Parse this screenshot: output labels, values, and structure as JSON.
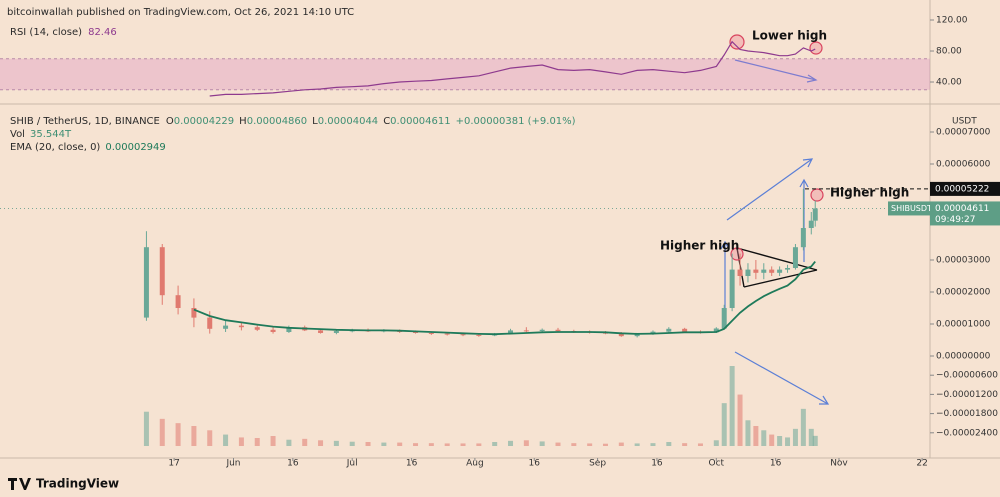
{
  "chart_data": {
    "type": "candlestick",
    "attribution": "bitcoinwallah published on TradingView.com, Oct 26, 2021 14:10 UTC",
    "symbol": "SHIB / TetherUS, 1D, BINANCE",
    "ohlc": [
      {
        "label": "O",
        "value": "0.00004229"
      },
      {
        "label": "H",
        "value": "0.00004860"
      },
      {
        "label": "L",
        "value": "0.00004044"
      },
      {
        "label": "C",
        "value": "0.00004611"
      }
    ],
    "change": "+0.00000381 (+9.01%)",
    "volume_label": "Vol",
    "volume_value": "35.544T",
    "ema_label": "EMA (20, close, 0)",
    "ema_value": "0.00002949",
    "rsi_label": "RSI (14, close)",
    "rsi_value": "82.46",
    "currency": "USDT",
    "ticker": "SHIBUSDT",
    "countdown": "09:49:27",
    "brand": "TradingView",
    "annotations": [
      "Lower high",
      "Higher high",
      "Higher high"
    ],
    "up_color": "#6aa897",
    "down_color": "#e07a6f",
    "ema_color": "#1e7a5a",
    "rsi_color": "#8e3a8e",
    "grid": false,
    "xlim": [
      -28,
      207
    ],
    "xticks": [
      {
        "value": 16,
        "label": "17"
      },
      {
        "value": 31,
        "label": "Jun"
      },
      {
        "value": 46,
        "label": "16"
      },
      {
        "value": 61,
        "label": "Jul"
      },
      {
        "value": 76,
        "label": "16"
      },
      {
        "value": 92,
        "label": "Aug"
      },
      {
        "value": 107,
        "label": "16"
      },
      {
        "value": 123,
        "label": "Sep"
      },
      {
        "value": 138,
        "label": "16"
      },
      {
        "value": 153,
        "label": "Oct"
      },
      {
        "value": 168,
        "label": "16"
      },
      {
        "value": 184,
        "label": "Nov"
      },
      {
        "value": 205,
        "label": "22"
      }
    ],
    "ylim": [
      -3.1875e-05,
      7.75e-05
    ],
    "yticks": [
      {
        "value": 7e-05,
        "label": "0.00007000"
      },
      {
        "value": 6e-05,
        "label": "0.00006000"
      },
      {
        "value": 3e-05,
        "label": "0.00003000"
      },
      {
        "value": 2e-05,
        "label": "0.00002000"
      },
      {
        "value": 1e-05,
        "label": "0.00001000"
      },
      {
        "value": 0,
        "label": "0.00000000"
      },
      {
        "value": -6e-06,
        "label": "−0.00000600"
      },
      {
        "value": -1.2e-05,
        "label": "−0.00001200"
      },
      {
        "value": -1.8e-05,
        "label": "−0.00001800"
      },
      {
        "value": -2.4e-05,
        "label": "−0.00002400"
      }
    ],
    "level": {
      "value": 5.222e-05,
      "label": "0.00005222"
    },
    "last_price": {
      "value": 4.611e-05,
      "label": "0.00004611"
    },
    "rsi_lim": [
      16.8,
      135.5
    ],
    "rsi_band": [
      30,
      70
    ],
    "rsi_ticks": [
      {
        "value": 120,
        "label": "120.00"
      },
      {
        "value": 80,
        "label": "80.00"
      },
      {
        "value": 40,
        "label": "40.00"
      }
    ],
    "volume_lim": [
      0,
      350
    ],
    "candles": {
      "x": [
        9,
        13,
        17,
        21,
        25,
        29,
        33,
        37,
        41,
        45,
        49,
        53,
        57,
        61,
        65,
        69,
        73,
        77,
        81,
        85,
        89,
        93,
        97,
        101,
        105,
        109,
        113,
        117,
        121,
        125,
        129,
        133,
        137,
        141,
        145,
        149,
        153,
        155,
        157,
        159,
        161,
        163,
        165,
        167,
        169,
        171,
        173,
        175,
        177,
        178
      ],
      "open": [
        1.2e-05,
        3.4e-05,
        1.9e-05,
        1.5e-05,
        1.2e-05,
        8.5e-06,
        9.5e-06,
        9e-06,
        8.2e-06,
        7.5e-06,
        9e-06,
        8e-06,
        7.2e-06,
        7.8e-06,
        8e-06,
        7.8e-06,
        8e-06,
        7.5e-06,
        7.2e-06,
        7e-06,
        6.8e-06,
        6.6e-06,
        6.4e-06,
        7e-06,
        8e-06,
        7.8e-06,
        8.2e-06,
        7.8e-06,
        7.6e-06,
        7.3e-06,
        7e-06,
        6.2e-06,
        7e-06,
        7.6e-06,
        8.5e-06,
        7.5e-06,
        7.4e-06,
        8.6e-06,
        1.5e-05,
        2.7e-05,
        2.5e-05,
        2.7e-05,
        2.6e-05,
        2.7e-05,
        2.6e-05,
        2.7e-05,
        2.75e-05,
        3.4e-05,
        4e-05,
        4.229e-05
      ],
      "high": [
        3.9e-05,
        3.5e-05,
        2.2e-05,
        1.8e-05,
        1.4e-05,
        1.1e-05,
        1.05e-05,
        1e-05,
        9e-06,
        9.5e-06,
        9.5e-06,
        8.5e-06,
        8.2e-06,
        8.5e-06,
        8.6e-06,
        8.4e-06,
        8.3e-06,
        8e-06,
        7.6e-06,
        7.4e-06,
        7.2e-06,
        7e-06,
        7.2e-06,
        8.5e-06,
        9e-06,
        8.6e-06,
        8.8e-06,
        8.2e-06,
        8e-06,
        7.8e-06,
        7.5e-06,
        7.2e-06,
        8e-06,
        9e-06,
        8.8e-06,
        8e-06,
        9e-06,
        1.6e-05,
        3.2e-05,
        3.2e-05,
        2.9e-05,
        3e-05,
        2.9e-05,
        2.8e-05,
        2.8e-05,
        2.85e-05,
        3.5e-05,
        5.222e-05,
        4.5e-05,
        4.86e-05
      ],
      "low": [
        1.1e-05,
        1.6e-05,
        1.3e-05,
        9e-06,
        7e-06,
        7.5e-06,
        8e-06,
        7.8e-06,
        7e-06,
        7.2e-06,
        7.8e-06,
        7e-06,
        6.8e-06,
        7.4e-06,
        7.5e-06,
        7.4e-06,
        7.2e-06,
        7e-06,
        6.6e-06,
        6.4e-06,
        6.2e-06,
        6e-06,
        6.2e-06,
        6.8e-06,
        7.4e-06,
        7.2e-06,
        7.6e-06,
        7.2e-06,
        7e-06,
        6.8e-06,
        6e-06,
        5.8e-06,
        6.6e-06,
        7.2e-06,
        7.2e-06,
        7e-06,
        7.2e-06,
        8.4e-06,
        1.4e-05,
        2.2e-05,
        2.3e-05,
        2.4e-05,
        2.4e-05,
        2.5e-05,
        2.5e-05,
        2.6e-05,
        2.7e-05,
        3.3e-05,
        3.8e-05,
        4.044e-05
      ],
      "close": [
        3.4e-05,
        1.9e-05,
        1.5e-05,
        1.2e-05,
        8.5e-06,
        9.5e-06,
        9e-06,
        8.2e-06,
        7.5e-06,
        9e-06,
        8e-06,
        7.2e-06,
        7.8e-06,
        8e-06,
        7.8e-06,
        8e-06,
        7.5e-06,
        7.2e-06,
        7e-06,
        6.8e-06,
        6.6e-06,
        6.4e-06,
        7e-06,
        8e-06,
        7.8e-06,
        8.2e-06,
        7.8e-06,
        7.6e-06,
        7.3e-06,
        7e-06,
        6.2e-06,
        7e-06,
        7.6e-06,
        8.5e-06,
        7.5e-06,
        7.4e-06,
        8.6e-06,
        1.5e-05,
        2.7e-05,
        2.5e-05,
        2.7e-05,
        2.6e-05,
        2.7e-05,
        2.6e-05,
        2.7e-05,
        2.75e-05,
        3.4e-05,
        4e-05,
        4.229e-05,
        4.611e-05
      ],
      "volume": [
        120,
        95,
        80,
        70,
        55,
        40,
        30,
        28,
        35,
        22,
        25,
        20,
        18,
        15,
        14,
        12,
        12,
        10,
        10,
        9,
        9,
        9,
        14,
        18,
        20,
        16,
        12,
        10,
        9,
        8,
        12,
        9,
        10,
        14,
        10,
        9,
        20,
        150,
        280,
        180,
        90,
        70,
        55,
        40,
        35,
        30,
        60,
        130,
        60,
        35.544
      ],
      "ema": [
        null,
        null,
        null,
        1.45e-05,
        1.25e-05,
        1.12e-05,
        1.05e-05,
        9.8e-06,
        9.2e-06,
        8.8e-06,
        8.6e-06,
        8.4e-06,
        8.2e-06,
        8.1e-06,
        8e-06,
        8e-06,
        7.9e-06,
        7.7e-06,
        7.5e-06,
        7.3e-06,
        7.1e-06,
        6.9e-06,
        6.8e-06,
        7e-06,
        7.2e-06,
        7.4e-06,
        7.5e-06,
        7.5e-06,
        7.5e-06,
        7.4e-06,
        7.1e-06,
        6.9e-06,
        7e-06,
        7.2e-06,
        7.4e-06,
        7.4e-06,
        7.5e-06,
        8.5e-06,
        1.1e-05,
        1.35e-05,
        1.55e-05,
        1.72e-05,
        1.87e-05,
        1.99e-05,
        2.1e-05,
        2.2e-05,
        2.4e-05,
        2.7e-05,
        2.8e-05,
        2.949e-05
      ],
      "rsi": [
        null,
        null,
        null,
        null,
        22,
        24,
        24,
        25,
        26,
        28,
        30,
        31,
        33,
        34,
        35,
        38,
        40,
        41,
        42,
        44,
        46,
        48,
        53,
        58,
        60,
        62,
        56,
        55,
        56,
        53,
        50,
        55,
        56,
        54,
        52,
        55,
        60,
        75,
        92,
        82,
        80,
        79,
        78,
        76,
        74,
        74,
        76,
        84,
        80,
        82.46
      ]
    }
  }
}
